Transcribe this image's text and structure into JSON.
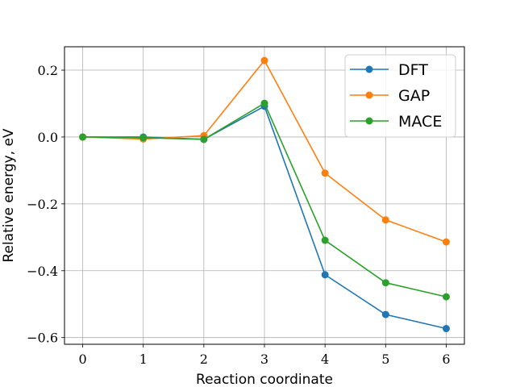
{
  "chart_data": {
    "type": "line",
    "xlabel": "Reaction coordinate",
    "ylabel": "Relative energy, eV",
    "x": [
      0,
      1,
      2,
      3,
      4,
      5,
      6
    ],
    "xlim": [
      -0.3,
      6.3
    ],
    "ylim": [
      -0.62,
      0.27
    ],
    "xticks": [
      0,
      1,
      2,
      3,
      4,
      5,
      6
    ],
    "xtick_labels": [
      "0",
      "1",
      "2",
      "3",
      "4",
      "5",
      "6"
    ],
    "yticks": [
      0.2,
      0.0,
      -0.2,
      -0.4,
      -0.6
    ],
    "ytick_labels": [
      "0.2",
      "0.0",
      "−0.2",
      "−0.4",
      "−0.6"
    ],
    "grid": true,
    "legend_position": "top-right",
    "series": [
      {
        "name": "DFT",
        "color": "#1f77b4",
        "values": [
          0.0,
          0.0,
          -0.007,
          0.092,
          -0.412,
          -0.531,
          -0.573
        ]
      },
      {
        "name": "GAP",
        "color": "#ff7f0e",
        "values": [
          0.0,
          -0.006,
          0.004,
          0.229,
          -0.108,
          -0.248,
          -0.314
        ]
      },
      {
        "name": "MACE",
        "color": "#2ca02c",
        "values": [
          0.0,
          -0.002,
          -0.007,
          0.101,
          -0.309,
          -0.436,
          -0.478
        ]
      }
    ]
  }
}
